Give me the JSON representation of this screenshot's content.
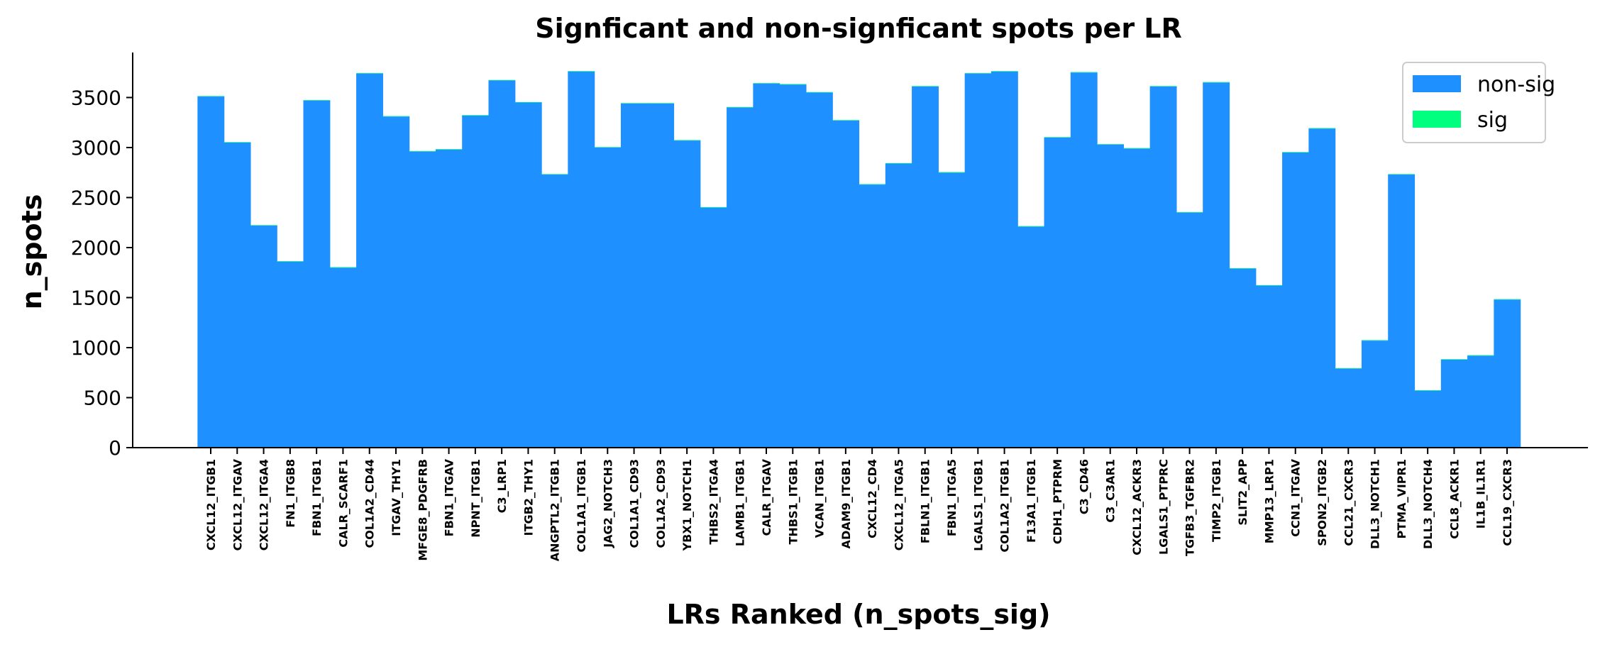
{
  "chart_data": {
    "type": "bar",
    "title": "Signficant and non-signficant spots per LR",
    "xlabel": "LRs Ranked (n_spots_sig)",
    "ylabel": "n_spots",
    "ylim": [
      0,
      3950
    ],
    "yticks": [
      0,
      500,
      1000,
      1500,
      2000,
      2500,
      3000,
      3500
    ],
    "grid": false,
    "legend_position": "top-right",
    "categories": [
      "CXCL12_ITGB1",
      "CXCL12_ITGAV",
      "CXCL12_ITGA4",
      "FN1_ITGB8",
      "FBN1_ITGB1",
      "CALR_SCARF1",
      "COL1A2_CD44",
      "ITGAV_THY1",
      "MFGE8_PDGFRB",
      "FBN1_ITGAV",
      "NPNT_ITGB1",
      "C3_LRP1",
      "ITGB2_THY1",
      "ANGPTL2_ITGB1",
      "COL1A1_ITGB1",
      "JAG2_NOTCH3",
      "COL1A1_CD93",
      "COL1A2_CD93",
      "YBX1_NOTCH1",
      "THBS2_ITGA4",
      "LAMB1_ITGB1",
      "CALR_ITGAV",
      "THBS1_ITGB1",
      "VCAN_ITGB1",
      "ADAM9_ITGB1",
      "CXCL12_CD4",
      "CXCL12_ITGA5",
      "FBLN1_ITGB1",
      "FBN1_ITGA5",
      "LGALS1_ITGB1",
      "COL1A2_ITGB1",
      "F13A1_ITGB1",
      "CDH1_PTPRM",
      "C3_CD46",
      "C3_C3AR1",
      "CXCL12_ACKR3",
      "LGALS1_PTPRC",
      "TGFB3_TGFBR2",
      "TIMP2_ITGB1",
      "SLIT2_APP",
      "MMP13_LRP1",
      "CCN1_ITGAV",
      "SPON2_ITGB2",
      "CCL21_CXCR3",
      "DLL3_NOTCH1",
      "PTMA_VIPR1",
      "DLL3_NOTCH4",
      "CCL8_ACKR1",
      "IL1B_IL1R1",
      "CCL19_CXCR3"
    ],
    "series": [
      {
        "name": "non-sig",
        "color": "#1e90ff",
        "values": [
          3510,
          3050,
          2220,
          1860,
          3470,
          1800,
          3740,
          3310,
          2960,
          2980,
          3320,
          3670,
          3450,
          2730,
          3760,
          3000,
          3440,
          3440,
          3070,
          2400,
          3400,
          3640,
          3630,
          3550,
          3270,
          2630,
          2840,
          3610,
          2750,
          3740,
          3760,
          2210,
          3100,
          3750,
          3030,
          2990,
          3610,
          2350,
          3650,
          1790,
          1620,
          2950,
          3190,
          790,
          1070,
          2730,
          570,
          880,
          920,
          1480
        ]
      },
      {
        "name": "sig",
        "color": "#00ff7f",
        "values": [
          5,
          5,
          5,
          5,
          5,
          5,
          5,
          5,
          5,
          5,
          5,
          5,
          5,
          5,
          5,
          5,
          5,
          5,
          5,
          5,
          5,
          5,
          5,
          5,
          5,
          5,
          5,
          5,
          5,
          5,
          5,
          5,
          5,
          5,
          5,
          5,
          5,
          5,
          5,
          5,
          5,
          5,
          5,
          5,
          5,
          5,
          5,
          5,
          5,
          5
        ]
      }
    ]
  }
}
